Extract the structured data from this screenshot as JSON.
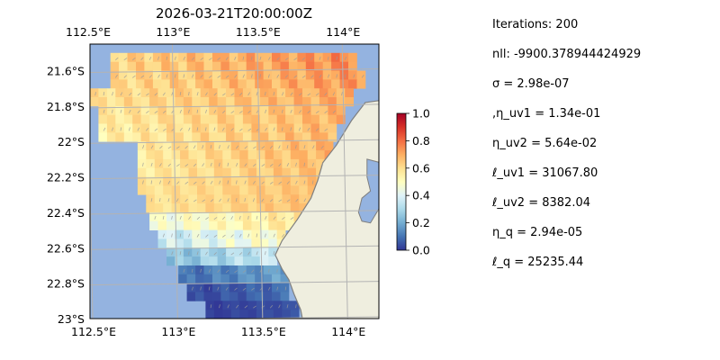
{
  "chart_data": {
    "type": "heatmap",
    "title": "2026-03-21T20:00:00Z",
    "x_ticks": [
      "112.5°E",
      "113°E",
      "113.5°E",
      "114°E"
    ],
    "x_tick_values": [
      112.5,
      113.0,
      113.5,
      114.0
    ],
    "y_ticks": [
      "21.6°S",
      "21.8°S",
      "22°S",
      "22.2°S",
      "22.4°S",
      "22.6°S",
      "22.8°S",
      "23°S"
    ],
    "y_tick_values": [
      -21.6,
      -21.8,
      -22.0,
      -22.2,
      -22.4,
      -22.6,
      -22.8,
      -23.0
    ],
    "xlim": [
      112.5,
      114.2
    ],
    "ylim": [
      -23.0,
      -21.45
    ],
    "colorbar": {
      "colormap": "RdYlBu_r",
      "range": [
        0.0,
        1.0
      ],
      "ticks": [
        "0.0",
        "0.2",
        "0.4",
        "0.6",
        "0.8",
        "1.0"
      ],
      "tick_values": [
        0.0,
        0.2,
        0.4,
        0.6,
        0.8,
        1.0
      ]
    },
    "grid": true,
    "ocean_color": "#94b3e0",
    "land_color": "#efeedf",
    "coast_color": "#7f7f7f",
    "grid_color": "#b3b3b3",
    "quiver_color": "#9a9a9a",
    "coastline": [
      [
        114.27,
        -21.45
      ],
      [
        114.27,
        -21.76
      ],
      [
        114.12,
        -21.78
      ],
      [
        114.04,
        -21.88
      ],
      [
        113.95,
        -22.02
      ],
      [
        113.87,
        -22.12
      ],
      [
        113.84,
        -22.22
      ],
      [
        113.8,
        -22.32
      ],
      [
        113.72,
        -22.44
      ],
      [
        113.63,
        -22.56
      ],
      [
        113.59,
        -22.64
      ],
      [
        113.63,
        -22.72
      ],
      [
        113.67,
        -22.78
      ],
      [
        113.7,
        -22.86
      ],
      [
        113.74,
        -22.95
      ],
      [
        113.76,
        -23.05
      ],
      [
        114.27,
        -23.05
      ]
    ],
    "inlet": [
      [
        114.13,
        -22.1
      ],
      [
        114.21,
        -22.12
      ],
      [
        114.2,
        -22.38
      ],
      [
        114.15,
        -22.46
      ],
      [
        114.1,
        -22.45
      ],
      [
        114.08,
        -22.4
      ],
      [
        114.1,
        -22.32
      ],
      [
        114.15,
        -22.28
      ],
      [
        114.13,
        -22.2
      ]
    ],
    "rows": [
      {
        "lat": -21.5,
        "w": 112.62,
        "e": 114.05,
        "mn": 0.56,
        "mx": 0.82
      },
      {
        "lat": -21.6,
        "w": 112.62,
        "e": 114.12,
        "mn": 0.55,
        "mx": 0.8
      },
      {
        "lat": -21.7,
        "w": 112.5,
        "e": 114.03,
        "mn": 0.54,
        "mx": 0.76
      },
      {
        "lat": -21.8,
        "w": 112.55,
        "e": 113.97,
        "mn": 0.52,
        "mx": 0.74
      },
      {
        "lat": -21.9,
        "w": 112.55,
        "e": 113.93,
        "mn": 0.5,
        "mx": 0.74
      },
      {
        "lat": -22.0,
        "w": 112.78,
        "e": 113.92,
        "mn": 0.52,
        "mx": 0.74
      },
      {
        "lat": -22.1,
        "w": 112.78,
        "e": 113.88,
        "mn": 0.52,
        "mx": 0.72
      },
      {
        "lat": -22.2,
        "w": 112.78,
        "e": 113.84,
        "mn": 0.55,
        "mx": 0.7
      },
      {
        "lat": -22.3,
        "w": 112.83,
        "e": 113.79,
        "mn": 0.55,
        "mx": 0.7
      },
      {
        "lat": -22.4,
        "w": 112.85,
        "e": 113.72,
        "mn": 0.4,
        "mx": 0.64
      },
      {
        "lat": -22.5,
        "w": 112.9,
        "e": 113.65,
        "mn": 0.28,
        "mx": 0.58
      },
      {
        "lat": -22.6,
        "w": 112.95,
        "e": 113.6,
        "mn": 0.18,
        "mx": 0.42
      },
      {
        "lat": -22.7,
        "w": 113.02,
        "e": 113.64,
        "mn": 0.05,
        "mx": 0.22
      },
      {
        "lat": -22.8,
        "w": 113.07,
        "e": 113.67,
        "mn": 0.0,
        "mx": 0.12
      },
      {
        "lat": -22.9,
        "w": 113.18,
        "e": 113.73,
        "mn": 0.0,
        "mx": 0.06
      }
    ]
  },
  "stats": {
    "iterations": "Iterations: 200",
    "nll": "nll: -9900.378944424929",
    "sigma": "σ = 2.98e-07",
    "eta_uv1": ",η_uv1 = 1.34e-01",
    "eta_uv2": "η_uv2 = 5.64e-02",
    "ell_uv1": "ℓ_uv1 = 31067.80",
    "ell_uv2": "ℓ_uv2 = 8382.04",
    "eta_q": "η_q = 2.94e-05",
    "ell_q": "ℓ_q = 25235.44"
  }
}
